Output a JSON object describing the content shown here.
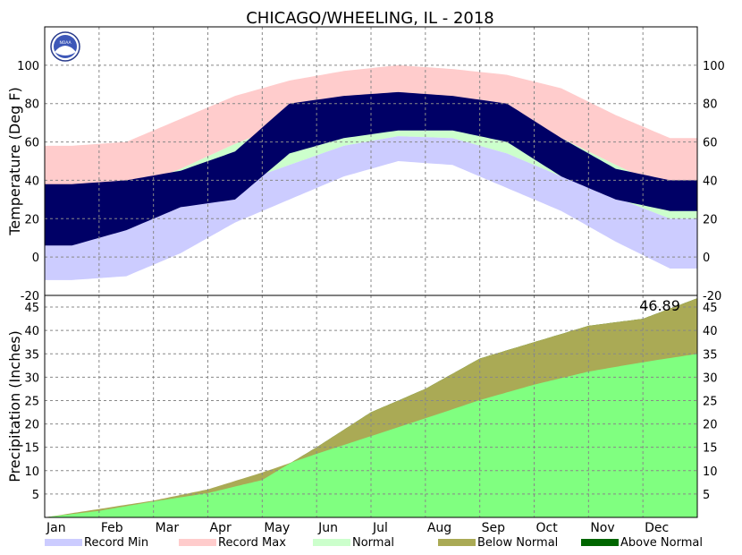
{
  "chart_data": {
    "type": "area",
    "title": "CHICAGO/WHEELING, IL - 2018",
    "months": [
      "Jan",
      "Feb",
      "Mar",
      "Apr",
      "May",
      "Jun",
      "Jul",
      "Aug",
      "Sep",
      "Oct",
      "Nov",
      "Dec"
    ],
    "legend_position": "bottom",
    "grid": true,
    "legend": [
      {
        "name": "Record Min",
        "color": "#ccccff"
      },
      {
        "name": "Record Max",
        "color": "#ffcccc"
      },
      {
        "name": "Normal",
        "color": "#ccffcc"
      },
      {
        "name": "Below Normal",
        "color": "#aaaa55"
      },
      {
        "name": "Above Normal",
        "color": "#006600"
      }
    ],
    "temperature": {
      "ylabel": "Temperature (Deg F)",
      "ylim": [
        -20,
        120
      ],
      "yticks": [
        -20,
        0,
        20,
        40,
        60,
        80,
        100
      ],
      "record_max_monthly": [
        58,
        60,
        72,
        84,
        92,
        97,
        100,
        98,
        95,
        88,
        74,
        62
      ],
      "record_min_monthly": [
        -12,
        -10,
        2,
        18,
        30,
        42,
        50,
        48,
        36,
        24,
        8,
        -6
      ],
      "normal_high_monthly": [
        31,
        35,
        46,
        59,
        70,
        80,
        84,
        82,
        75,
        62,
        48,
        35
      ],
      "normal_low_monthly": [
        16,
        19,
        28,
        38,
        48,
        58,
        63,
        62,
        54,
        42,
        31,
        20
      ],
      "observed_high_monthly": [
        38,
        40,
        45,
        55,
        80,
        84,
        86,
        84,
        80,
        62,
        46,
        40
      ],
      "observed_low_monthly": [
        6,
        14,
        26,
        30,
        54,
        62,
        66,
        66,
        60,
        42,
        30,
        24
      ]
    },
    "precipitation": {
      "ylabel": "Precipitation (Inches)",
      "ylim": [
        0,
        47.5
      ],
      "yticks": [
        5,
        10,
        15,
        20,
        25,
        30,
        35,
        40,
        45
      ],
      "total_label": "46.89",
      "normal_cumulative_monthly_end": [
        1.8,
        3.6,
        6.0,
        9.6,
        13.6,
        17.4,
        21.2,
        25.1,
        28.4,
        31.2,
        33.2,
        35.0
      ],
      "observed_cumulative_monthly_end": [
        1.4,
        3.4,
        5.2,
        8.0,
        15.0,
        22.5,
        27.5,
        34.0,
        37.5,
        41.0,
        42.5,
        46.89
      ]
    }
  }
}
